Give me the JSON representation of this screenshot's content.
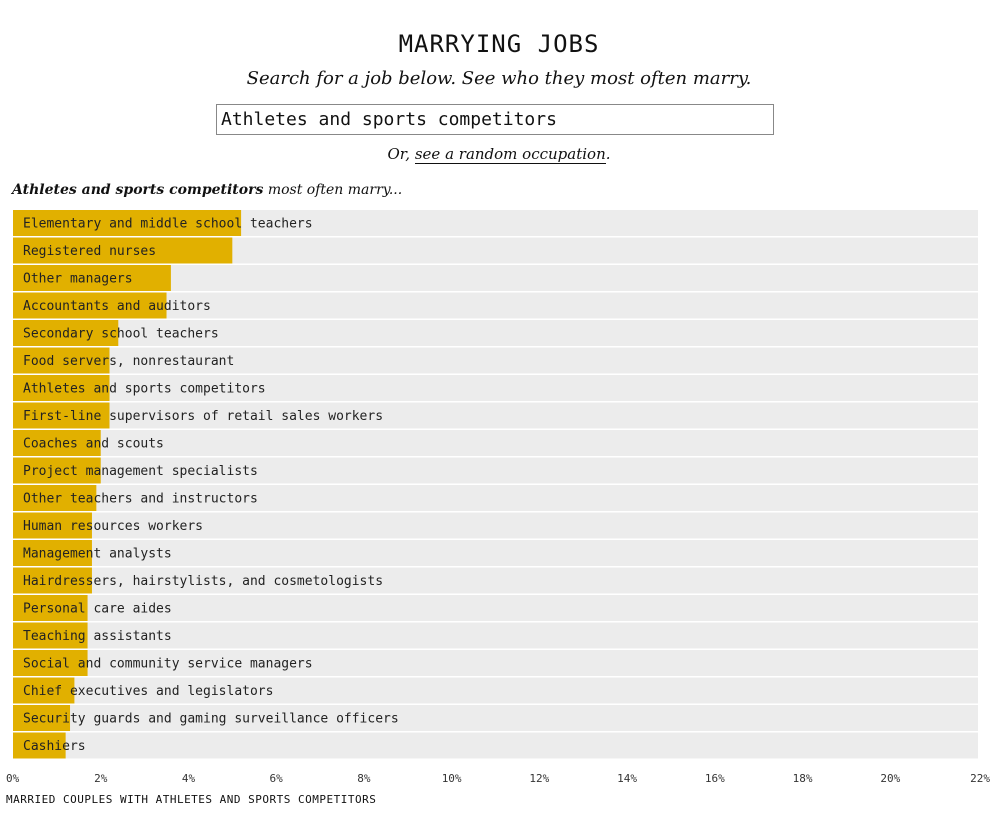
{
  "header": {
    "title": "MARRYING JOBS",
    "subtitle": "Search for a job below. See who they most often marry."
  },
  "search": {
    "value": "Athletes and sports competitors"
  },
  "random": {
    "prefix": "Or, ",
    "link_label": "see a random occupation",
    "suffix": "."
  },
  "result": {
    "occupation": "Athletes and sports competitors",
    "suffix": "most often marry..."
  },
  "colors": {
    "bar": "#e1b000",
    "track": "#ececec"
  },
  "chart_data": {
    "type": "bar",
    "orientation": "horizontal",
    "categories": [
      "Elementary and middle school teachers",
      "Registered nurses",
      "Other managers",
      "Accountants and auditors",
      "Secondary school teachers",
      "Food servers, nonrestaurant",
      "Athletes and sports competitors",
      "First-line supervisors of retail sales workers",
      "Coaches and scouts",
      "Project management specialists",
      "Other teachers and instructors",
      "Human resources workers",
      "Management analysts",
      "Hairdressers, hairstylists, and cosmetologists",
      "Personal care aides",
      "Teaching assistants",
      "Social and community service managers",
      "Chief executives and legislators",
      "Security guards and gaming surveillance officers",
      "Cashiers"
    ],
    "values": [
      5.2,
      5.0,
      3.6,
      3.5,
      2.4,
      2.2,
      2.2,
      2.2,
      2.0,
      2.0,
      1.9,
      1.8,
      1.8,
      1.8,
      1.7,
      1.7,
      1.7,
      1.4,
      1.3,
      1.2
    ],
    "xlim": [
      0,
      22
    ],
    "xticks": [
      "0%",
      "2%",
      "4%",
      "6%",
      "8%",
      "10%",
      "12%",
      "14%",
      "16%",
      "18%",
      "20%",
      "22%"
    ],
    "xlabel": "MARRIED COUPLES WITH ATHLETES AND SPORTS COMPETITORS"
  }
}
